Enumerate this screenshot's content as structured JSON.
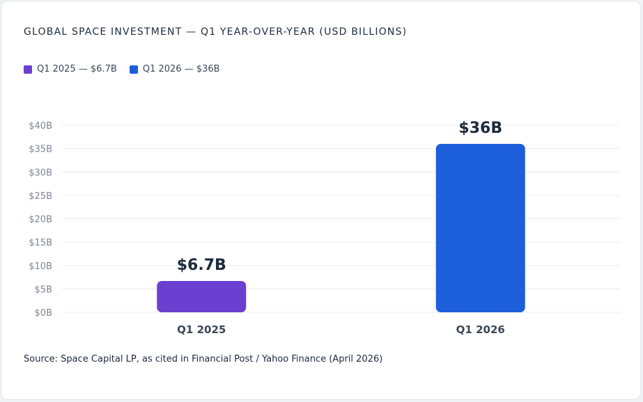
{
  "title": "GLOBAL SPACE INVESTMENT — Q1 YEAR-OVER-YEAR (USD BILLIONS)",
  "legend": [
    {
      "label": "Q1 2025 — $6.7B",
      "color": "#6b3fd0"
    },
    {
      "label": "Q1 2026 — $36B",
      "color": "#1d5fdb"
    }
  ],
  "source": "Source: Space Capital LP, as cited in Financial Post / Yahoo Finance (April 2026)",
  "chart_data": {
    "type": "bar",
    "title": "GLOBAL SPACE INVESTMENT — Q1 YEAR-OVER-YEAR (USD BILLIONS)",
    "categories": [
      "Q1 2025",
      "Q1 2026"
    ],
    "values": [
      6.7,
      36
    ],
    "value_labels": [
      "$6.7B",
      "$36B"
    ],
    "colors": [
      "#6b3fd0",
      "#1d5fdb"
    ],
    "ylim": [
      0,
      40
    ],
    "yticks": [
      0,
      5,
      10,
      15,
      20,
      25,
      30,
      35,
      40
    ],
    "ytick_labels": [
      "$0B",
      "$5B",
      "$10B",
      "$15B",
      "$20B",
      "$25B",
      "$30B",
      "$35B",
      "$40B"
    ],
    "grid": true,
    "legend": "top-left"
  }
}
